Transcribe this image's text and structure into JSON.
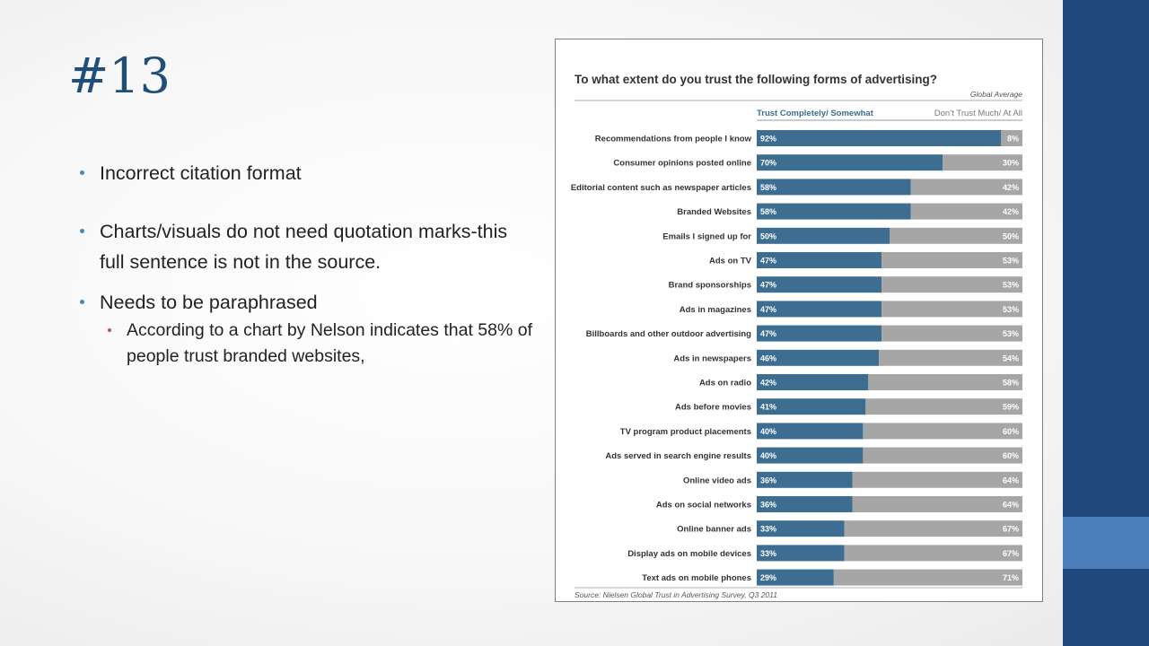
{
  "slide": {
    "title": "#13",
    "bullets": [
      "Incorrect citation format",
      "Charts/visuals do not need quotation marks-this full sentence is not in the source.",
      "Needs to be paraphrased"
    ],
    "sub_bullet": "According to a chart by Nelson indicates that 58% of people trust branded websites,"
  },
  "chart_data": {
    "type": "bar",
    "stacked": true,
    "orientation": "horizontal",
    "title": "To what extent do you trust the following forms of advertising?",
    "subtitle": "Global Average",
    "source": "Source: Nielsen Global Trust in Advertising Survey, Q3 2011",
    "categories": [
      "Recommendations from people I know",
      "Consumer opinions posted online",
      "Editorial content such as newspaper articles",
      "Branded Websites",
      "Emails I signed up for",
      "Ads on TV",
      "Brand sponsorships",
      "Ads in magazines",
      "Billboards and other outdoor advertising",
      "Ads in newspapers",
      "Ads on radio",
      "Ads before movies",
      "TV program product placements",
      "Ads served in search engine results",
      "Online video ads",
      "Ads on social networks",
      "Online banner ads",
      "Display ads on mobile devices",
      "Text ads on mobile phones"
    ],
    "series": [
      {
        "name": "Trust Completely/ Somewhat",
        "color": "#3d6e91",
        "values": [
          92,
          70,
          58,
          58,
          50,
          47,
          47,
          47,
          47,
          46,
          42,
          41,
          40,
          40,
          36,
          36,
          33,
          33,
          29
        ]
      },
      {
        "name": "Don’t Trust Much/ At All",
        "color": "#a6a6a6",
        "values": [
          8,
          30,
          42,
          42,
          50,
          53,
          53,
          53,
          53,
          54,
          58,
          59,
          60,
          60,
          64,
          64,
          67,
          67,
          71
        ]
      }
    ],
    "xlim": [
      0,
      100
    ],
    "legend": "top"
  }
}
